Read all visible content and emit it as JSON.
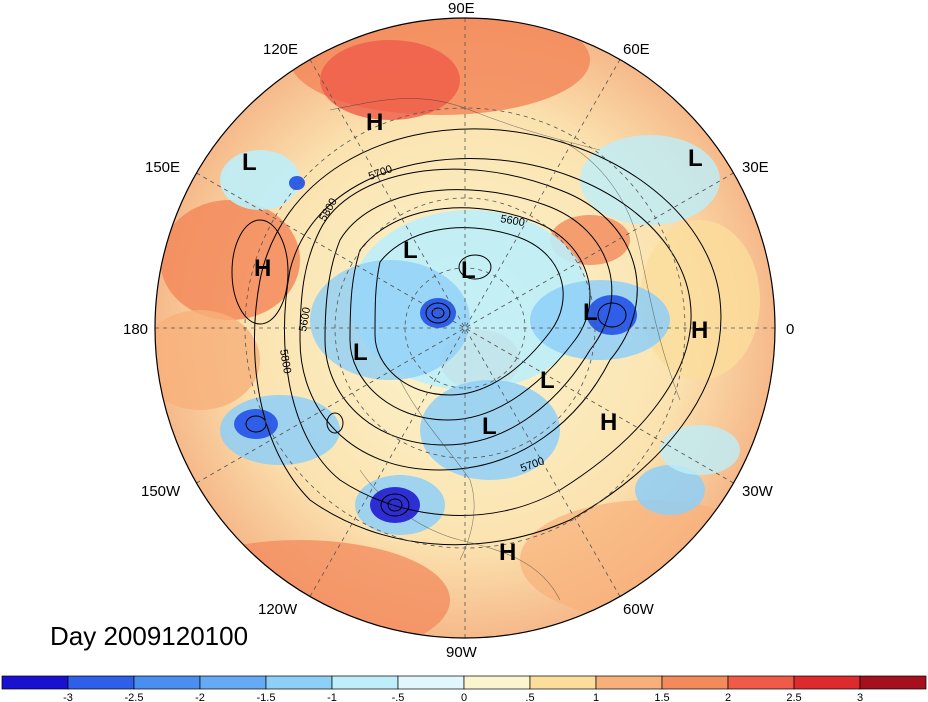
{
  "title": "Day 2009120100",
  "longitude_labels": {
    "east_90": "90E",
    "east_120": "120E",
    "east_60": "60E",
    "east_150": "150E",
    "east_30": "30E",
    "lon_180": "180",
    "lon_0": "0",
    "west_150": "150W",
    "west_30": "30W",
    "west_120": "120W",
    "west_60": "60W",
    "west_90": "90W"
  },
  "pressure_centers": [
    {
      "label": "H",
      "region": "east-siberia"
    },
    {
      "label": "L",
      "region": "north-pacific-west"
    },
    {
      "label": "L",
      "region": "scandinavia"
    },
    {
      "label": "H",
      "region": "bering-sea"
    },
    {
      "label": "L",
      "region": "arctic-siberia"
    },
    {
      "label": "L",
      "region": "arctic-central"
    },
    {
      "label": "L",
      "region": "north-atlantic"
    },
    {
      "label": "H",
      "region": "west-africa"
    },
    {
      "label": "L",
      "region": "alaska"
    },
    {
      "label": "L",
      "region": "greenland-south"
    },
    {
      "label": "H",
      "region": "mid-atlantic"
    },
    {
      "label": "L",
      "region": "hudson-bay"
    },
    {
      "label": "H",
      "region": "caribbean"
    }
  ],
  "contour_labels": [
    "5700",
    "5800",
    "5600",
    "5600",
    "5800",
    "5700"
  ],
  "colorbar": {
    "tick_labels": [
      "-3",
      "-2.5",
      "-2",
      "-1.5",
      "-1",
      "-.5",
      "0",
      ".5",
      "1",
      "1.5",
      "2",
      "2.5",
      "3"
    ],
    "colors": [
      "#1a10d0",
      "#2f5fe8",
      "#4a8ef0",
      "#66aaf5",
      "#8ecff8",
      "#bdeefa",
      "#e2f7fb",
      "#fbf5cf",
      "#fbdd9c",
      "#f8b07a",
      "#f38a5c",
      "#ef5b48",
      "#dc2a2e",
      "#a5101e"
    ]
  },
  "legend": {
    "position": "bottom",
    "orientation": "horizontal"
  }
}
